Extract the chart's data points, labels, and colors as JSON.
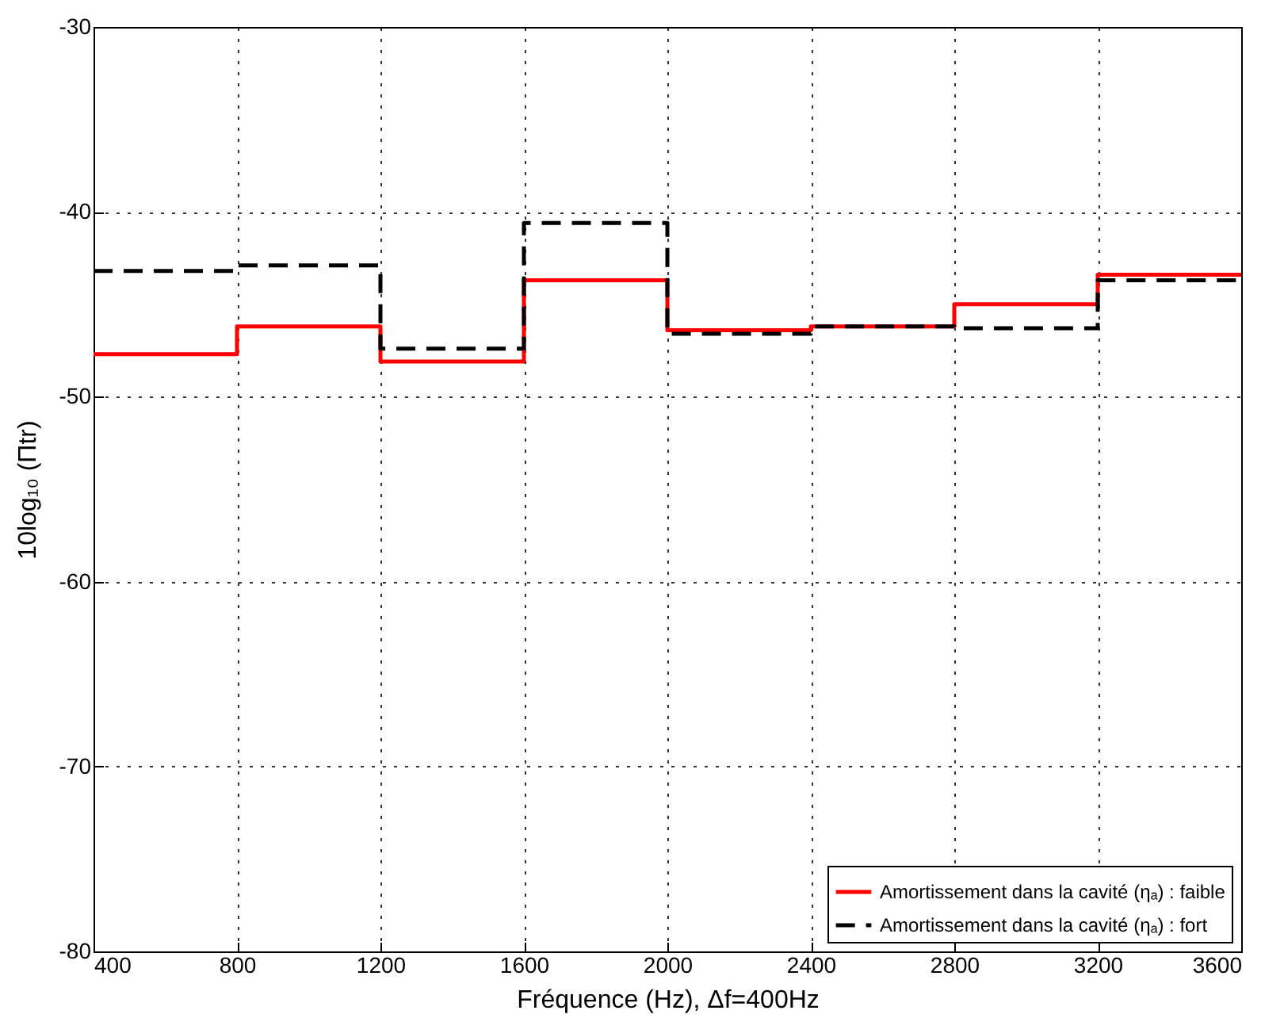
{
  "chart_data": {
    "type": "step",
    "xlabel": "Fréquence (Hz),  Δf=400Hz",
    "ylabel": "10log₁₀ (Πtr)",
    "x": [
      400,
      800,
      1200,
      1600,
      2000,
      2400,
      2800,
      3200,
      3600
    ],
    "series": [
      {
        "name": "Amortissement dans la cavité (ηₐ) : faible",
        "color": "#ff0000",
        "line_style": "solid",
        "values": [
          -47.7,
          -46.2,
          -48.1,
          -43.7,
          -46.4,
          -46.2,
          -45.0,
          -43.4,
          -43.4
        ]
      },
      {
        "name": "Amortissement dans la cavité (ηₐ) : fort",
        "color": "#000000",
        "line_style": "dashed",
        "values": [
          -43.2,
          -42.9,
          -47.4,
          -40.6,
          -46.6,
          -46.2,
          -46.3,
          -43.7,
          -43.7
        ]
      }
    ],
    "xlim": [
      400,
      3600
    ],
    "xticks": [
      400,
      800,
      1200,
      1600,
      2000,
      2400,
      2800,
      3200,
      3600
    ],
    "ylim": [
      -80,
      -30
    ],
    "yticks": [
      -80,
      -70,
      -60,
      -50,
      -40,
      -30
    ],
    "grid": true,
    "legend": "bottom right"
  }
}
